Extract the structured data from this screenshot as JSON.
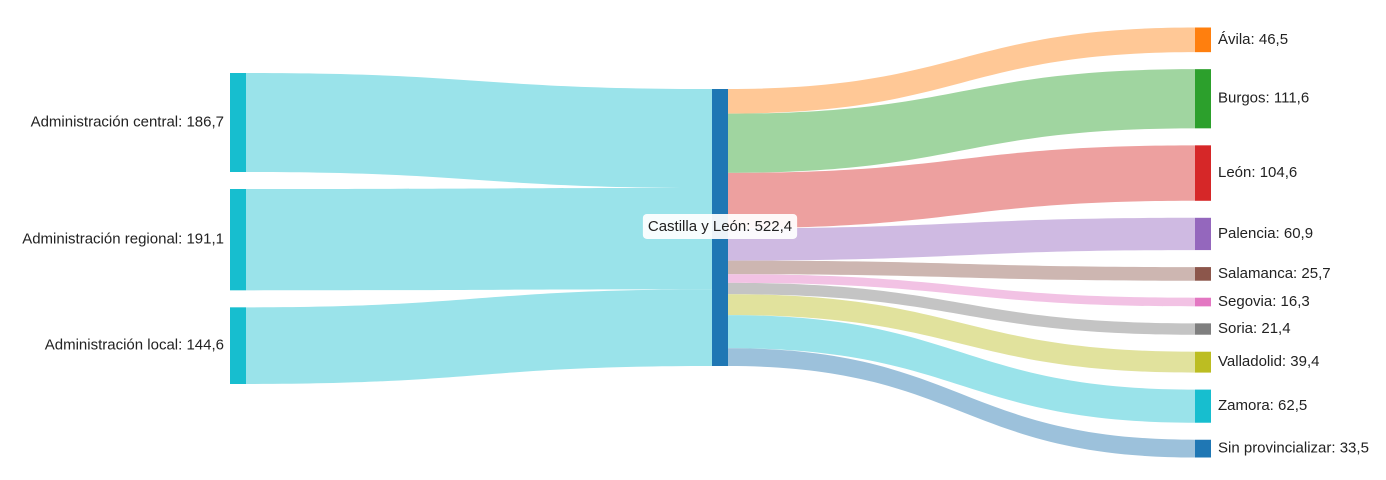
{
  "chart_data": {
    "type": "sankey",
    "sources": [
      {
        "name": "Administración central",
        "label": "Administración central: 186,7",
        "value": 186.7
      },
      {
        "name": "Administración regional",
        "label": "Administración regional: 191,1",
        "value": 191.1
      },
      {
        "name": "Administración local",
        "label": "Administración local: 144,6",
        "value": 144.6
      }
    ],
    "hub": {
      "name": "Castilla y León",
      "label": "Castilla y León: 522,4",
      "value": 522.4
    },
    "targets": [
      {
        "name": "Ávila",
        "label": "Ávila: 46,5",
        "value": 46.5
      },
      {
        "name": "Burgos",
        "label": "Burgos: 111,6",
        "value": 111.6
      },
      {
        "name": "León",
        "label": "León: 104,6",
        "value": 104.6
      },
      {
        "name": "Palencia",
        "label": "Palencia: 60,9",
        "value": 60.9
      },
      {
        "name": "Salamanca",
        "label": "Salamanca: 25,7",
        "value": 25.7
      },
      {
        "name": "Segovia",
        "label": "Segovia: 16,3",
        "value": 16.3
      },
      {
        "name": "Soria",
        "label": "Soria: 21,4",
        "value": 21.4
      },
      {
        "name": "Valladolid",
        "label": "Valladolid: 39,4",
        "value": 39.4
      },
      {
        "name": "Zamora",
        "label": "Zamora: 62,5",
        "value": 62.5
      },
      {
        "name": "Sin provincializar",
        "label": "Sin provincializar: 33,5",
        "value": 33.5
      }
    ],
    "colors": {
      "source_node": "#17becf",
      "source_link": "#9ae3ea",
      "hub_node": "#1f77b4",
      "targets": [
        {
          "node": "#ff7f0e",
          "link": "#ffc896"
        },
        {
          "node": "#2ca02c",
          "link": "#a0d5a0"
        },
        {
          "node": "#d62728",
          "link": "#eda09f"
        },
        {
          "node": "#9467bd",
          "link": "#cfbae2"
        },
        {
          "node": "#8c564b",
          "link": "#cdb6b1"
        },
        {
          "node": "#e377c2",
          "link": "#f2c2e4"
        },
        {
          "node": "#7f7f7f",
          "link": "#c4c4c4"
        },
        {
          "node": "#bcbd22",
          "link": "#e1e29d"
        },
        {
          "node": "#17becf",
          "link": "#9ae3ea"
        },
        {
          "node": "#1f77b4",
          "link": "#9cc1db"
        }
      ]
    }
  }
}
